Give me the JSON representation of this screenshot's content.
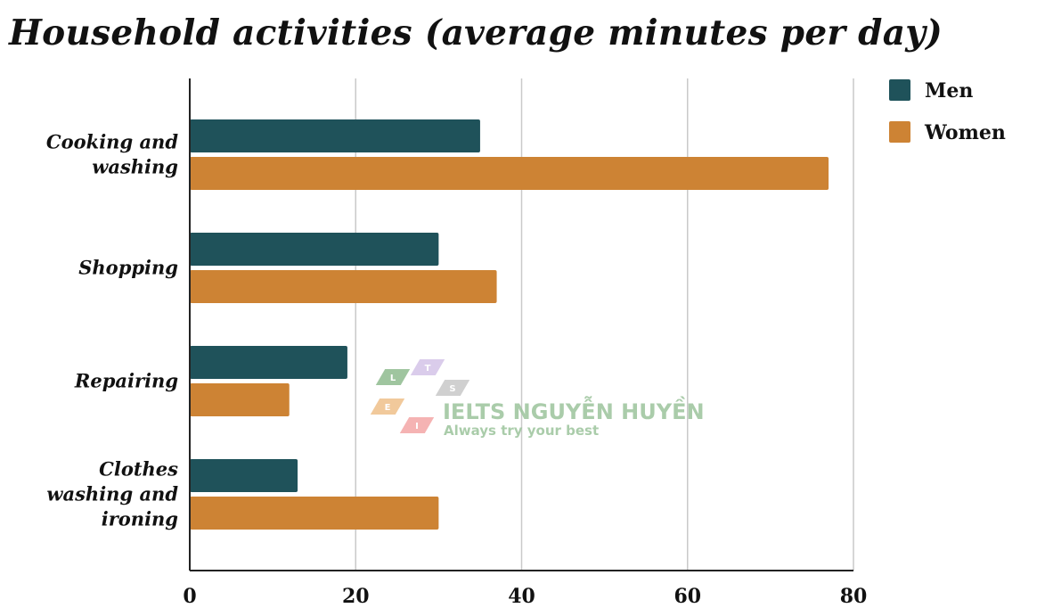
{
  "chart_data": {
    "type": "bar",
    "orientation": "horizontal",
    "title": "Household activities (average minutes per day)",
    "categories": [
      "Cooking and washing",
      "Shopping",
      "Repairing",
      "Clothes washing and ironing"
    ],
    "category_lines": [
      [
        "Cooking and",
        "washing"
      ],
      [
        "Shopping"
      ],
      [
        "Repairing"
      ],
      [
        "Clothes",
        "washing and",
        "ironing"
      ]
    ],
    "series": [
      {
        "name": "Men",
        "color": "#1f525a",
        "values": [
          35,
          30,
          19,
          13
        ]
      },
      {
        "name": "Women",
        "color": "#cd8334",
        "values": [
          77,
          37,
          12,
          30
        ]
      }
    ],
    "xlim": [
      0,
      80
    ],
    "xticks": [
      0,
      20,
      40,
      60,
      80
    ],
    "xlabel": "",
    "ylabel": "",
    "grid": true,
    "legend_position": "top-right"
  },
  "watermark": {
    "title": "IELTS NGUYỄN HUYỀN",
    "subtitle": "Always try your best",
    "letters": [
      "L",
      "T",
      "S",
      "E",
      "I"
    ],
    "colors": [
      "#8fbc8f",
      "#d4c4e8",
      "#c8c8c8",
      "#efc08a",
      "#f4a6a6"
    ],
    "text_color": "#9cc49c"
  }
}
